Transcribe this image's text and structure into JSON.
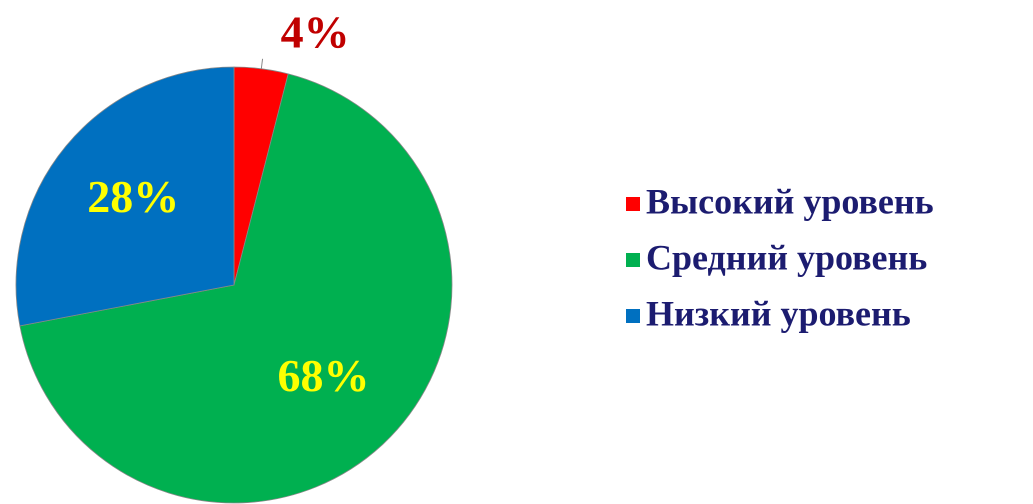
{
  "chart_data": {
    "type": "pie",
    "categories": [
      "Высокий уровень",
      "Средний уровень",
      "Низкий уровень"
    ],
    "values": [
      4,
      68,
      28
    ],
    "value_labels": [
      "4%",
      "68%",
      "28%"
    ],
    "colors": [
      "#ff0000",
      "#00b050",
      "#0070c0"
    ],
    "label_colors": [
      "#c00000",
      "#ffff00",
      "#ffff00"
    ],
    "legend": "right"
  }
}
